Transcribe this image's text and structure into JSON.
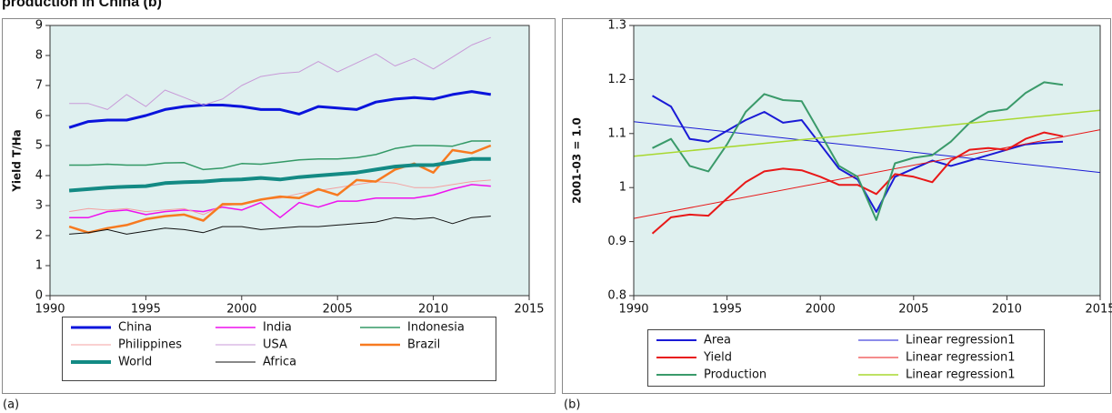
{
  "heading": "production in China (b)",
  "chart_data": [
    {
      "type": "line",
      "caption": "(a)",
      "ylabel": "Yield T/Ha",
      "xlim": [
        1990,
        2015
      ],
      "xticks": [
        1990,
        1995,
        2000,
        2005,
        2010,
        2015
      ],
      "ylim": [
        0,
        9
      ],
      "yticks": [
        0,
        1,
        2,
        3,
        4,
        5,
        6,
        7,
        8,
        9
      ],
      "legend_columns": 3,
      "background": "#dff0ef",
      "x": [
        1991,
        1992,
        1993,
        1994,
        1995,
        1996,
        1997,
        1998,
        1999,
        2000,
        2001,
        2002,
        2003,
        2004,
        2005,
        2006,
        2007,
        2008,
        2009,
        2010,
        2011,
        2012,
        2013
      ],
      "series": [
        {
          "name": "China",
          "color": "#0a14dc",
          "width": 3,
          "values": [
            5.6,
            5.8,
            5.85,
            5.85,
            6.0,
            6.2,
            6.3,
            6.35,
            6.35,
            6.3,
            6.2,
            6.2,
            6.05,
            6.3,
            6.25,
            6.2,
            6.45,
            6.55,
            6.6,
            6.55,
            6.7,
            6.8,
            6.7
          ]
        },
        {
          "name": "India",
          "color": "#ee11ee",
          "width": 1.5,
          "values": [
            2.6,
            2.6,
            2.8,
            2.85,
            2.7,
            2.8,
            2.85,
            2.8,
            2.95,
            2.85,
            3.1,
            2.6,
            3.1,
            2.95,
            3.15,
            3.15,
            3.25,
            3.25,
            3.25,
            3.35,
            3.55,
            3.7,
            3.65
          ]
        },
        {
          "name": "Indonesia",
          "color": "#339966",
          "width": 1.5,
          "values": [
            4.35,
            4.35,
            4.38,
            4.35,
            4.35,
            4.42,
            4.43,
            4.2,
            4.25,
            4.4,
            4.38,
            4.45,
            4.52,
            4.55,
            4.55,
            4.6,
            4.7,
            4.9,
            5.0,
            5.0,
            4.98,
            5.15,
            5.15
          ]
        },
        {
          "name": "Philippines",
          "color": "#f4a0a0",
          "width": 1,
          "values": [
            2.8,
            2.9,
            2.85,
            2.9,
            2.8,
            2.85,
            2.9,
            2.7,
            3.0,
            3.05,
            3.2,
            3.25,
            3.4,
            3.5,
            3.6,
            3.7,
            3.8,
            3.75,
            3.6,
            3.6,
            3.7,
            3.8,
            3.85
          ]
        },
        {
          "name": "USA",
          "color": "#c89ad8",
          "width": 1,
          "values": [
            6.4,
            6.4,
            6.2,
            6.7,
            6.3,
            6.85,
            6.6,
            6.35,
            6.55,
            7.0,
            7.3,
            7.4,
            7.45,
            7.8,
            7.45,
            7.75,
            8.05,
            7.65,
            7.9,
            7.55,
            7.95,
            8.35,
            8.6
          ]
        },
        {
          "name": "Brazil",
          "color": "#f77a20",
          "width": 2.5,
          "values": [
            2.3,
            2.1,
            2.25,
            2.35,
            2.55,
            2.65,
            2.7,
            2.5,
            3.05,
            3.05,
            3.2,
            3.3,
            3.25,
            3.55,
            3.35,
            3.85,
            3.8,
            4.2,
            4.4,
            4.1,
            4.85,
            4.75,
            5.0
          ]
        },
        {
          "name": "World",
          "color": "#138a84",
          "width": 4,
          "values": [
            3.5,
            3.55,
            3.6,
            3.63,
            3.65,
            3.75,
            3.78,
            3.8,
            3.85,
            3.87,
            3.92,
            3.87,
            3.95,
            4.0,
            4.05,
            4.1,
            4.2,
            4.3,
            4.35,
            4.35,
            4.45,
            4.55,
            4.55
          ]
        },
        {
          "name": "Africa",
          "color": "#111111",
          "width": 1,
          "values": [
            2.05,
            2.1,
            2.2,
            2.05,
            2.15,
            2.25,
            2.2,
            2.1,
            2.3,
            2.3,
            2.2,
            2.25,
            2.3,
            2.3,
            2.35,
            2.4,
            2.45,
            2.6,
            2.55,
            2.6,
            2.4,
            2.6,
            2.65
          ]
        }
      ]
    },
    {
      "type": "line",
      "caption": "(b)",
      "ylabel": "2001-03 = 1.0",
      "xlim": [
        1990,
        2015
      ],
      "xticks": [
        1990,
        1995,
        2000,
        2005,
        2010,
        2015
      ],
      "ylim": [
        0.8,
        1.3
      ],
      "yticks": [
        0.8,
        0.9,
        1,
        1.1,
        1.2,
        1.3
      ],
      "legend_columns": 2,
      "background": "#dff0ef",
      "x": [
        1991,
        1992,
        1993,
        1994,
        1995,
        1996,
        1997,
        1998,
        1999,
        2000,
        2001,
        2002,
        2003,
        2004,
        2005,
        2006,
        2007,
        2008,
        2009,
        2010,
        2011,
        2012,
        2013
      ],
      "series": [
        {
          "name": "Area",
          "color": "#1a1ad6",
          "width": 2,
          "values": [
            1.17,
            1.15,
            1.09,
            1.085,
            1.105,
            1.125,
            1.14,
            1.12,
            1.125,
            1.08,
            1.035,
            1.015,
            0.955,
            1.02,
            1.035,
            1.05,
            1.04,
            1.05,
            1.06,
            1.07,
            1.08,
            1.083,
            1.085
          ]
        },
        {
          "name": "Linear regression1",
          "color": "#1a1ad6",
          "width": 1,
          "x": [
            1990,
            2015
          ],
          "values": [
            1.122,
            1.028
          ]
        },
        {
          "name": "Yield",
          "color": "#e81818",
          "width": 2,
          "values": [
            0.915,
            0.945,
            0.95,
            0.948,
            0.98,
            1.01,
            1.03,
            1.035,
            1.032,
            1.02,
            1.005,
            1.005,
            0.988,
            1.025,
            1.02,
            1.01,
            1.05,
            1.07,
            1.073,
            1.07,
            1.09,
            1.102,
            1.095
          ]
        },
        {
          "name": "Linear regression1",
          "color": "#e81818",
          "width": 1,
          "x": [
            1990,
            2015
          ],
          "values": [
            0.943,
            1.107
          ]
        },
        {
          "name": "Production",
          "color": "#3a9a6a",
          "width": 2,
          "values": [
            1.073,
            1.09,
            1.04,
            1.03,
            1.08,
            1.14,
            1.173,
            1.162,
            1.16,
            1.1,
            1.04,
            1.02,
            0.94,
            1.045,
            1.055,
            1.06,
            1.085,
            1.12,
            1.14,
            1.145,
            1.175,
            1.195,
            1.19
          ]
        },
        {
          "name": "Linear regression1",
          "color": "#a8d830",
          "width": 1.5,
          "x": [
            1990,
            2015
          ],
          "values": [
            1.058,
            1.143
          ]
        }
      ]
    }
  ]
}
